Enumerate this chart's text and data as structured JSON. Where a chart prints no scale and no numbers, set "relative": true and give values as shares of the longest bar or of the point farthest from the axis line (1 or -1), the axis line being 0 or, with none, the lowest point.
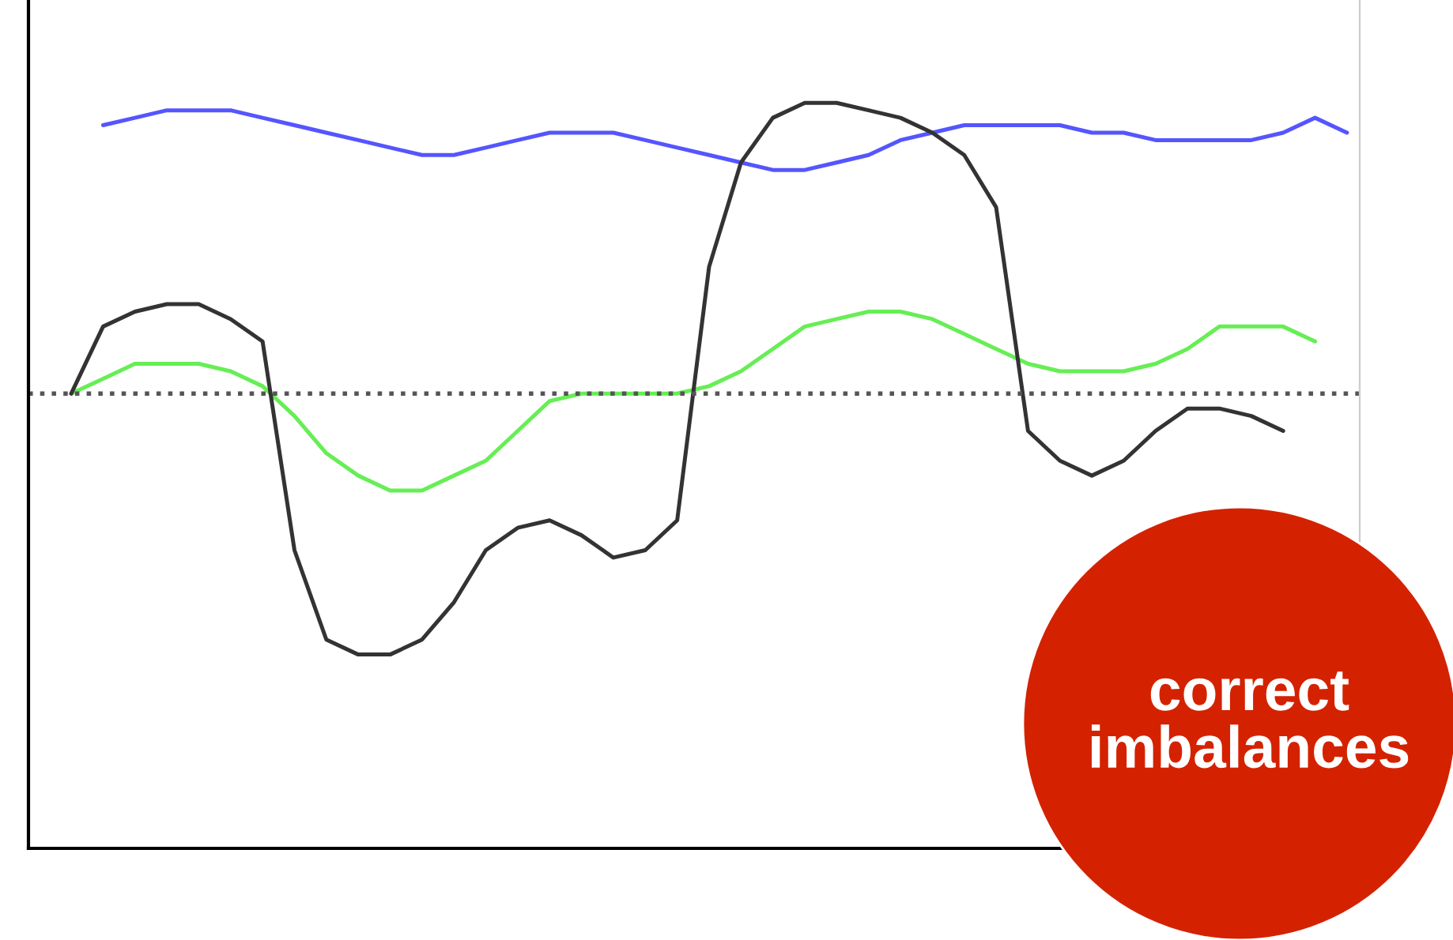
{
  "chart_data": {
    "type": "line",
    "relative": true,
    "marker": "none",
    "line_style": "solid",
    "categories": [
      null,
      null,
      null,
      null,
      null,
      null,
      null,
      null,
      null,
      null,
      null,
      null,
      null,
      null,
      null,
      null,
      null,
      null,
      null,
      null,
      null,
      null,
      null,
      null,
      null,
      null,
      null,
      null,
      null,
      null,
      null,
      null,
      null,
      null,
      null,
      null,
      null,
      null,
      null,
      null,
      null
    ],
    "series": [
      {
        "color": "#5555ff",
        "values": [
          null,
          0.97,
          0.98,
          0.99,
          0.99,
          0.99,
          0.98,
          0.97,
          0.96,
          0.95,
          0.94,
          0.93,
          0.93,
          0.94,
          0.95,
          0.96,
          0.96,
          0.96,
          0.95,
          0.94,
          0.93,
          0.92,
          0.91,
          0.91,
          0.92,
          0.93,
          0.95,
          0.96,
          0.97,
          0.97,
          0.97,
          0.97,
          0.96,
          0.96,
          0.95,
          0.95,
          0.95,
          0.95,
          0.96,
          0.98,
          0.96
        ]
      },
      {
        "color": "#66ee55",
        "values": [
          0.61,
          0.63,
          0.65,
          0.65,
          0.65,
          0.64,
          0.62,
          0.58,
          0.53,
          0.5,
          0.48,
          0.48,
          0.5,
          0.52,
          0.56,
          0.6,
          0.61,
          0.61,
          0.61,
          0.61,
          0.62,
          0.64,
          0.67,
          0.7,
          0.71,
          0.72,
          0.72,
          0.71,
          0.69,
          0.67,
          0.65,
          0.64,
          0.64,
          0.64,
          0.65,
          0.67,
          0.7,
          0.7,
          0.7,
          0.68,
          null
        ]
      },
      {
        "color": "#333333",
        "values": [
          0.61,
          0.7,
          0.72,
          0.73,
          0.73,
          0.71,
          0.68,
          0.4,
          0.28,
          0.26,
          0.26,
          0.28,
          0.33,
          0.4,
          0.43,
          0.44,
          0.42,
          0.39,
          0.4,
          0.44,
          0.78,
          0.92,
          0.98,
          1.0,
          1.0,
          0.99,
          0.98,
          0.96,
          0.93,
          0.86,
          0.56,
          0.52,
          0.5,
          0.52,
          0.56,
          0.59,
          0.59,
          0.58,
          0.56,
          null,
          null
        ]
      }
    ],
    "ref_lines": [
      {
        "axis": "y",
        "value": 0.61,
        "color": "#555555",
        "line_style": "dotted"
      }
    ],
    "annotations": [
      "correct imbalances"
    ]
  }
}
